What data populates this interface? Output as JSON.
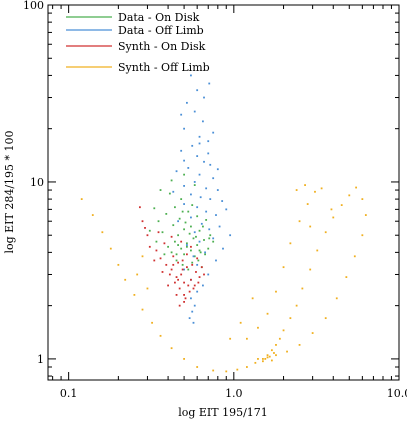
{
  "chart_data": {
    "type": "scatter",
    "title": "",
    "xlabel": "log EIT 195/171",
    "ylabel": "log EIT 284/195 * 100",
    "x_scale": "log",
    "y_scale": "log",
    "xlim": [
      0.075,
      10.0
    ],
    "ylim": [
      0.76,
      100
    ],
    "x_ticks": [
      {
        "value": 0.1,
        "label": "0.1"
      },
      {
        "value": 1.0,
        "label": "1.0"
      },
      {
        "value": 10.0,
        "label": "10.0"
      }
    ],
    "y_ticks": [
      {
        "value": 1,
        "label": "1"
      },
      {
        "value": 10,
        "label": "10"
      },
      {
        "value": 100,
        "label": "100"
      }
    ],
    "grid": false,
    "legend_position": "top-left",
    "series": [
      {
        "name": "Data - On Disk",
        "color": "#4caf50",
        "points": [
          [
            0.42,
            4.0
          ],
          [
            0.45,
            3.6
          ],
          [
            0.48,
            4.2
          ],
          [
            0.5,
            3.9
          ],
          [
            0.52,
            4.5
          ],
          [
            0.55,
            4.1
          ],
          [
            0.58,
            3.8
          ],
          [
            0.6,
            4.4
          ],
          [
            0.63,
            4.0
          ],
          [
            0.66,
            4.7
          ],
          [
            0.7,
            4.2
          ],
          [
            0.46,
            5.0
          ],
          [
            0.5,
            5.4
          ],
          [
            0.54,
            5.1
          ],
          [
            0.57,
            4.8
          ],
          [
            0.62,
            5.3
          ],
          [
            0.44,
            4.6
          ],
          [
            0.4,
            4.3
          ],
          [
            0.37,
            5.2
          ],
          [
            0.35,
            6.0
          ],
          [
            0.39,
            6.6
          ],
          [
            0.43,
            5.7
          ],
          [
            0.47,
            6.2
          ],
          [
            0.51,
            5.9
          ],
          [
            0.53,
            6.8
          ],
          [
            0.56,
            7.4
          ],
          [
            0.48,
            8.0
          ],
          [
            0.44,
            7.2
          ],
          [
            0.41,
            8.6
          ],
          [
            0.6,
            6.4
          ],
          [
            0.65,
            5.6
          ],
          [
            0.68,
            6.1
          ],
          [
            0.72,
            5.0
          ],
          [
            0.75,
            4.6
          ],
          [
            0.49,
            3.4
          ],
          [
            0.53,
            3.2
          ],
          [
            0.56,
            3.5
          ],
          [
            0.61,
            3.6
          ],
          [
            0.64,
            3.3
          ],
          [
            0.67,
            3.9
          ],
          [
            0.38,
            3.9
          ],
          [
            0.34,
            4.6
          ],
          [
            0.31,
            5.3
          ],
          [
            0.33,
            7.1
          ],
          [
            0.36,
            9.0
          ],
          [
            0.42,
            10.2
          ],
          [
            0.5,
            11.0
          ],
          [
            0.58,
            9.6
          ],
          [
            0.46,
            4.4
          ],
          [
            0.52,
            4.3
          ],
          [
            0.59,
            4.9
          ],
          [
            0.55,
            5.6
          ],
          [
            0.49,
            6.8
          ],
          [
            0.45,
            3.9
          ],
          [
            0.71,
            4.8
          ],
          [
            0.62,
            4.1
          ]
        ]
      },
      {
        "name": "Data - Off Limb",
        "color": "#4a8fd6",
        "points": [
          [
            0.55,
            40
          ],
          [
            0.6,
            33
          ],
          [
            0.52,
            28
          ],
          [
            0.58,
            25
          ],
          [
            0.65,
            22
          ],
          [
            0.5,
            20
          ],
          [
            0.62,
            18
          ],
          [
            0.7,
            17
          ],
          [
            0.56,
            16
          ],
          [
            0.48,
            15
          ],
          [
            0.6,
            14
          ],
          [
            0.66,
            13
          ],
          [
            0.72,
            12.5
          ],
          [
            0.53,
            12
          ],
          [
            0.45,
            11.5
          ],
          [
            0.62,
            11
          ],
          [
            0.75,
            10.5
          ],
          [
            0.58,
            10
          ],
          [
            0.5,
            9.5
          ],
          [
            0.68,
            9.2
          ],
          [
            0.8,
            9.0
          ],
          [
            0.43,
            8.8
          ],
          [
            0.55,
            8.5
          ],
          [
            0.63,
            8.2
          ],
          [
            0.72,
            8.0
          ],
          [
            0.85,
            7.8
          ],
          [
            0.5,
            7.5
          ],
          [
            0.6,
            7.2
          ],
          [
            0.9,
            7.0
          ],
          [
            0.68,
            6.8
          ],
          [
            0.78,
            6.5
          ],
          [
            0.55,
            6.3
          ],
          [
            0.46,
            6.0
          ],
          [
            0.64,
            5.8
          ],
          [
            0.82,
            5.6
          ],
          [
            0.71,
            5.4
          ],
          [
            0.58,
            5.2
          ],
          [
            0.95,
            5.0
          ],
          [
            0.75,
            4.8
          ],
          [
            0.62,
            4.6
          ],
          [
            0.52,
            4.4
          ],
          [
            0.86,
            4.2
          ],
          [
            0.67,
            4.0
          ],
          [
            0.57,
            3.8
          ],
          [
            0.78,
            3.6
          ],
          [
            0.6,
            3.4
          ],
          [
            0.5,
            3.2
          ],
          [
            0.7,
            3.0
          ],
          [
            0.55,
            2.8
          ],
          [
            0.65,
            2.6
          ],
          [
            0.6,
            2.4
          ],
          [
            0.55,
            2.2
          ],
          [
            0.58,
            2.0
          ],
          [
            0.56,
            1.85
          ],
          [
            0.54,
            1.7
          ],
          [
            0.57,
            1.6
          ],
          [
            0.62,
            16.5
          ],
          [
            0.7,
            14.5
          ],
          [
            0.5,
            13.2
          ],
          [
            0.75,
            19
          ],
          [
            0.48,
            24
          ],
          [
            0.66,
            30
          ],
          [
            0.71,
            36
          ],
          [
            0.8,
            11.8
          ]
        ]
      },
      {
        "name": "Synth - On Disk",
        "color": "#d03030",
        "points": [
          [
            0.42,
            3.2
          ],
          [
            0.45,
            2.9
          ],
          [
            0.48,
            3.0
          ],
          [
            0.5,
            2.7
          ],
          [
            0.52,
            3.3
          ],
          [
            0.55,
            2.8
          ],
          [
            0.47,
            2.5
          ],
          [
            0.5,
            2.3
          ],
          [
            0.53,
            2.6
          ],
          [
            0.44,
            2.7
          ],
          [
            0.41,
            3.0
          ],
          [
            0.39,
            3.4
          ],
          [
            0.36,
            3.7
          ],
          [
            0.34,
            4.1
          ],
          [
            0.38,
            4.5
          ],
          [
            0.43,
            3.8
          ],
          [
            0.46,
            3.5
          ],
          [
            0.49,
            3.6
          ],
          [
            0.52,
            3.9
          ],
          [
            0.56,
            3.4
          ],
          [
            0.59,
            3.1
          ],
          [
            0.62,
            2.9
          ],
          [
            0.58,
            2.6
          ],
          [
            0.54,
            2.4
          ],
          [
            0.5,
            2.1
          ],
          [
            0.47,
            2.0
          ],
          [
            0.45,
            2.3
          ],
          [
            0.4,
            2.6
          ],
          [
            0.37,
            3.1
          ],
          [
            0.33,
            3.6
          ],
          [
            0.31,
            4.3
          ],
          [
            0.3,
            5.0
          ],
          [
            0.28,
            6.0
          ],
          [
            0.27,
            7.2
          ],
          [
            0.29,
            5.5
          ],
          [
            0.35,
            5.2
          ],
          [
            0.42,
            4.9
          ],
          [
            0.48,
            4.6
          ],
          [
            0.55,
            4.3
          ],
          [
            0.6,
            3.7
          ],
          [
            0.64,
            3.3
          ],
          [
            0.66,
            3.0
          ],
          [
            0.61,
            2.7
          ],
          [
            0.57,
            2.5
          ],
          [
            0.51,
            2.2
          ],
          [
            0.46,
            2.8
          ],
          [
            0.43,
            3.4
          ],
          [
            0.49,
            3.2
          ]
        ]
      },
      {
        "name": "Synth - Off Limb",
        "color": "#f0b020",
        "points": [
          [
            0.12,
            8.0
          ],
          [
            0.14,
            6.5
          ],
          [
            0.16,
            5.2
          ],
          [
            0.18,
            4.2
          ],
          [
            0.2,
            3.4
          ],
          [
            0.22,
            2.8
          ],
          [
            0.25,
            2.3
          ],
          [
            0.28,
            1.9
          ],
          [
            0.32,
            1.6
          ],
          [
            0.36,
            1.35
          ],
          [
            0.42,
            1.15
          ],
          [
            0.5,
            1.0
          ],
          [
            0.6,
            0.9
          ],
          [
            0.75,
            0.86
          ],
          [
            0.9,
            0.85
          ],
          [
            1.05,
            0.87
          ],
          [
            1.2,
            0.9
          ],
          [
            1.35,
            0.95
          ],
          [
            1.5,
            1.0
          ],
          [
            1.6,
            1.05
          ],
          [
            1.7,
            1.12
          ],
          [
            1.8,
            1.2
          ],
          [
            1.9,
            1.3
          ],
          [
            2.0,
            1.45
          ],
          [
            2.2,
            1.7
          ],
          [
            2.4,
            2.0
          ],
          [
            2.6,
            2.5
          ],
          [
            2.9,
            3.2
          ],
          [
            3.2,
            4.1
          ],
          [
            3.6,
            5.2
          ],
          [
            4.0,
            6.3
          ],
          [
            4.5,
            7.4
          ],
          [
            5.0,
            8.4
          ],
          [
            5.5,
            9.3
          ],
          [
            6.0,
            8.0
          ],
          [
            6.3,
            6.5
          ],
          [
            6.0,
            5.0
          ],
          [
            5.4,
            3.8
          ],
          [
            4.8,
            2.9
          ],
          [
            4.2,
            2.2
          ],
          [
            3.6,
            1.7
          ],
          [
            3.0,
            1.4
          ],
          [
            2.5,
            1.2
          ],
          [
            2.1,
            1.1
          ],
          [
            1.8,
            1.05
          ],
          [
            1.6,
            1.02
          ],
          [
            1.4,
            1.0
          ],
          [
            1.7,
            0.98
          ],
          [
            1.55,
            1.0
          ],
          [
            1.65,
            1.03
          ],
          [
            1.75,
            1.08
          ],
          [
            1.5,
            0.97
          ],
          [
            2.2,
            4.5
          ],
          [
            2.5,
            6.0
          ],
          [
            2.8,
            7.5
          ],
          [
            3.1,
            8.8
          ],
          [
            2.0,
            3.3
          ],
          [
            1.8,
            2.4
          ],
          [
            1.6,
            1.8
          ],
          [
            1.4,
            1.5
          ],
          [
            1.2,
            1.3
          ],
          [
            2.7,
            9.6
          ],
          [
            3.4,
            9.2
          ],
          [
            3.9,
            7.0
          ],
          [
            0.28,
            3.8
          ],
          [
            0.26,
            3.0
          ],
          [
            0.3,
            2.5
          ],
          [
            0.95,
            1.3
          ],
          [
            1.1,
            1.6
          ],
          [
            1.3,
            2.2
          ],
          [
            2.4,
            9.0
          ],
          [
            2.9,
            5.6
          ]
        ]
      }
    ]
  }
}
